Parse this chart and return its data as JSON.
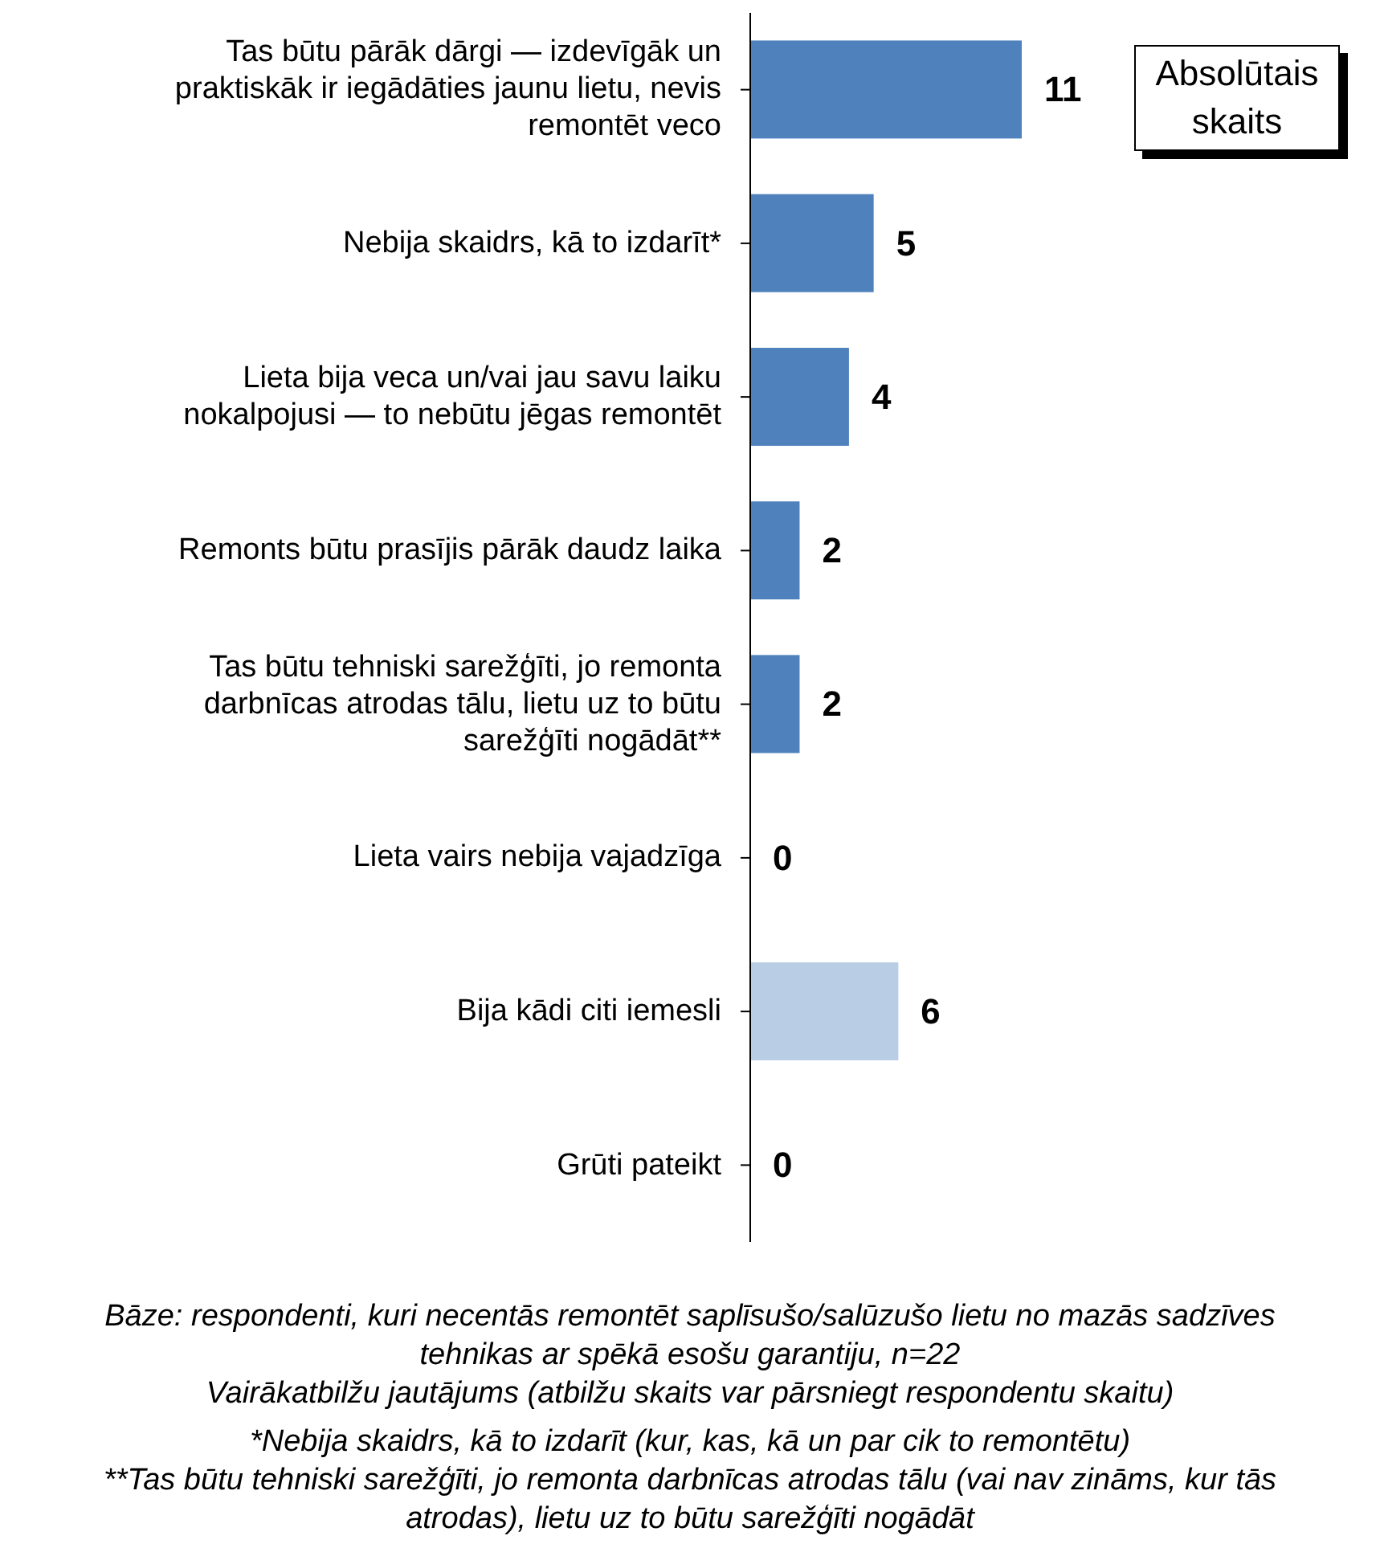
{
  "chart_data": {
    "type": "bar",
    "orientation": "horizontal",
    "categories": [
      "Tas būtu pārāk dārgi — izdevīgāk un praktiskāk ir iegādāties jaunu lietu, nevis remontēt veco",
      "Nebija skaidrs, kā to izdarīt*",
      "Lieta bija veca un/vai jau savu laiku nokalpojusi — to nebūtu jēgas remontēt",
      "Remonts būtu prasījis pārāk daudz laika",
      "Tas būtu tehniski sarežģīti, jo remonta darbnīcas atrodas tālu, lietu uz to būtu sarežģīti nogādāt**",
      "Lieta vairs nebija vajadzīga",
      "Bija kādi citi iemesli",
      "Grūti pateikt"
    ],
    "values": [
      11,
      5,
      4,
      2,
      2,
      0,
      6,
      0
    ],
    "colors": [
      "#4f81bd",
      "#4f81bd",
      "#4f81bd",
      "#4f81bd",
      "#4f81bd",
      "#4f81bd",
      "#b9cde5",
      "#4f81bd"
    ],
    "data_labels": true,
    "tick_labels": "y",
    "grid": false,
    "legend": false,
    "annotations": [
      "Absolūtais skaits",
      "Bāze: respondenti, kuri necentās remontēt saplīsušo/salūzušo lietu no mazās sadzīves tehnikas ar spēkā esošu garantiju, n=22",
      "Vairākatbilžu jautājums (atbilžu skaits var pārsniegt respondentu skaitu)",
      "*Nebija skaidrs, kā to izdarīt (kur, kas, kā un par cik to remontētu)",
      "**Tas būtu tehniski sarežģīti, jo remonta darbnīcas atrodas tālu (vai nav zināms, kur tās atrodas), lietu uz to būtu sarežģīti nogādāt"
    ]
  }
}
